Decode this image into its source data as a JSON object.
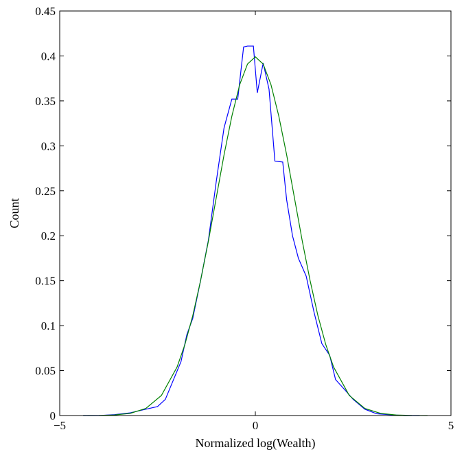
{
  "chart_data": {
    "type": "line",
    "title": "",
    "xlabel": "Normalized log(Wealth)",
    "ylabel": "Count",
    "xlim": [
      -5,
      5
    ],
    "ylim": [
      0,
      0.45
    ],
    "xticks": [
      -5,
      0,
      5
    ],
    "xtick_labels": [
      "−5",
      "0",
      "5"
    ],
    "yticks": [
      0,
      0.05,
      0.1,
      0.15,
      0.2,
      0.25,
      0.3,
      0.35,
      0.4,
      0.45
    ],
    "ytick_labels": [
      "0",
      "0.05",
      "0.1",
      "0.15",
      "0.2",
      "0.25",
      "0.3",
      "0.35",
      "0.4",
      "0.45"
    ],
    "grid": false,
    "legend": "none",
    "series": [
      {
        "color": "#0000ff",
        "x": [
          -4.4,
          -4.0,
          -3.6,
          -3.2,
          -2.8,
          -2.5,
          -2.3,
          -2.1,
          -1.9,
          -1.75,
          -1.6,
          -1.4,
          -1.2,
          -1.0,
          -0.8,
          -0.6,
          -0.45,
          -0.3,
          -0.2,
          -0.05,
          0.05,
          0.2,
          0.35,
          0.5,
          0.7,
          0.8,
          0.95,
          1.1,
          1.3,
          1.5,
          1.7,
          1.9,
          2.05,
          2.3,
          2.5,
          2.8,
          3.1,
          3.4,
          3.8,
          4.2
        ],
        "y": [
          0.0,
          0.0,
          0.001,
          0.003,
          0.007,
          0.01,
          0.018,
          0.039,
          0.06,
          0.09,
          0.108,
          0.15,
          0.195,
          0.26,
          0.32,
          0.352,
          0.352,
          0.41,
          0.411,
          0.411,
          0.359,
          0.392,
          0.363,
          0.283,
          0.282,
          0.24,
          0.2,
          0.175,
          0.155,
          0.115,
          0.08,
          0.067,
          0.04,
          0.028,
          0.018,
          0.007,
          0.002,
          0.001,
          0.0,
          0.0
        ]
      },
      {
        "color": "#008000",
        "x": [
          -4.4,
          -4.0,
          -3.6,
          -3.2,
          -2.8,
          -2.4,
          -2.0,
          -1.8,
          -1.6,
          -1.4,
          -1.2,
          -1.0,
          -0.8,
          -0.6,
          -0.4,
          -0.2,
          0.0,
          0.2,
          0.4,
          0.6,
          0.8,
          1.0,
          1.2,
          1.4,
          1.6,
          1.8,
          2.0,
          2.4,
          2.8,
          3.2,
          3.6,
          4.0,
          4.4
        ],
        "y": [
          0.0,
          0.0001,
          0.0006,
          0.0024,
          0.0079,
          0.0224,
          0.054,
          0.079,
          0.111,
          0.15,
          0.194,
          0.242,
          0.29,
          0.333,
          0.368,
          0.391,
          0.399,
          0.391,
          0.368,
          0.333,
          0.29,
          0.242,
          0.194,
          0.15,
          0.111,
          0.079,
          0.054,
          0.0224,
          0.0079,
          0.0024,
          0.0006,
          0.0001,
          0.0
        ]
      }
    ]
  }
}
